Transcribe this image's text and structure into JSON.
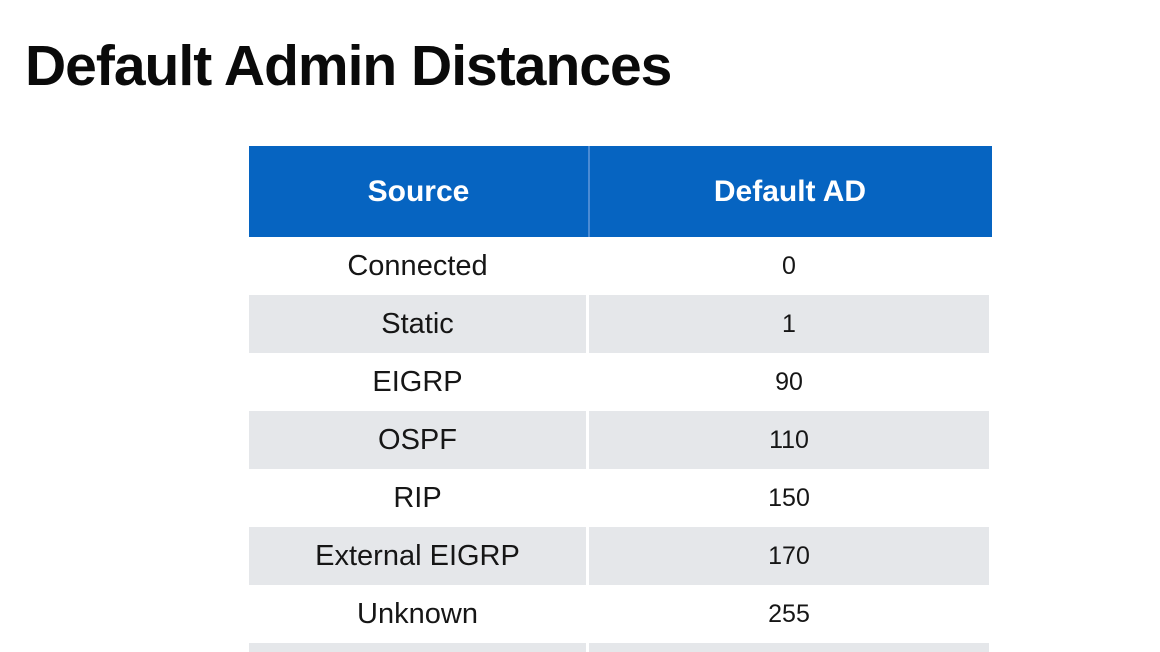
{
  "page": {
    "title": "Default Admin Distances"
  },
  "table": {
    "columns": [
      {
        "label": "Source"
      },
      {
        "label": "Default AD"
      }
    ],
    "rows": [
      {
        "source": "Connected",
        "ad": "0"
      },
      {
        "source": "Static",
        "ad": "1"
      },
      {
        "source": "EIGRP",
        "ad": "90"
      },
      {
        "source": "OSPF",
        "ad": "110"
      },
      {
        "source": "RIP",
        "ad": "150"
      },
      {
        "source": "External EIGRP",
        "ad": "170"
      },
      {
        "source": "Unknown",
        "ad": "255"
      }
    ],
    "colors": {
      "header_bg": "#0664C1",
      "header_text": "#FFFFFF",
      "header_divider": "#4A8BD4",
      "band_bg": "#E5E7EA",
      "body_text": "#161616"
    }
  }
}
